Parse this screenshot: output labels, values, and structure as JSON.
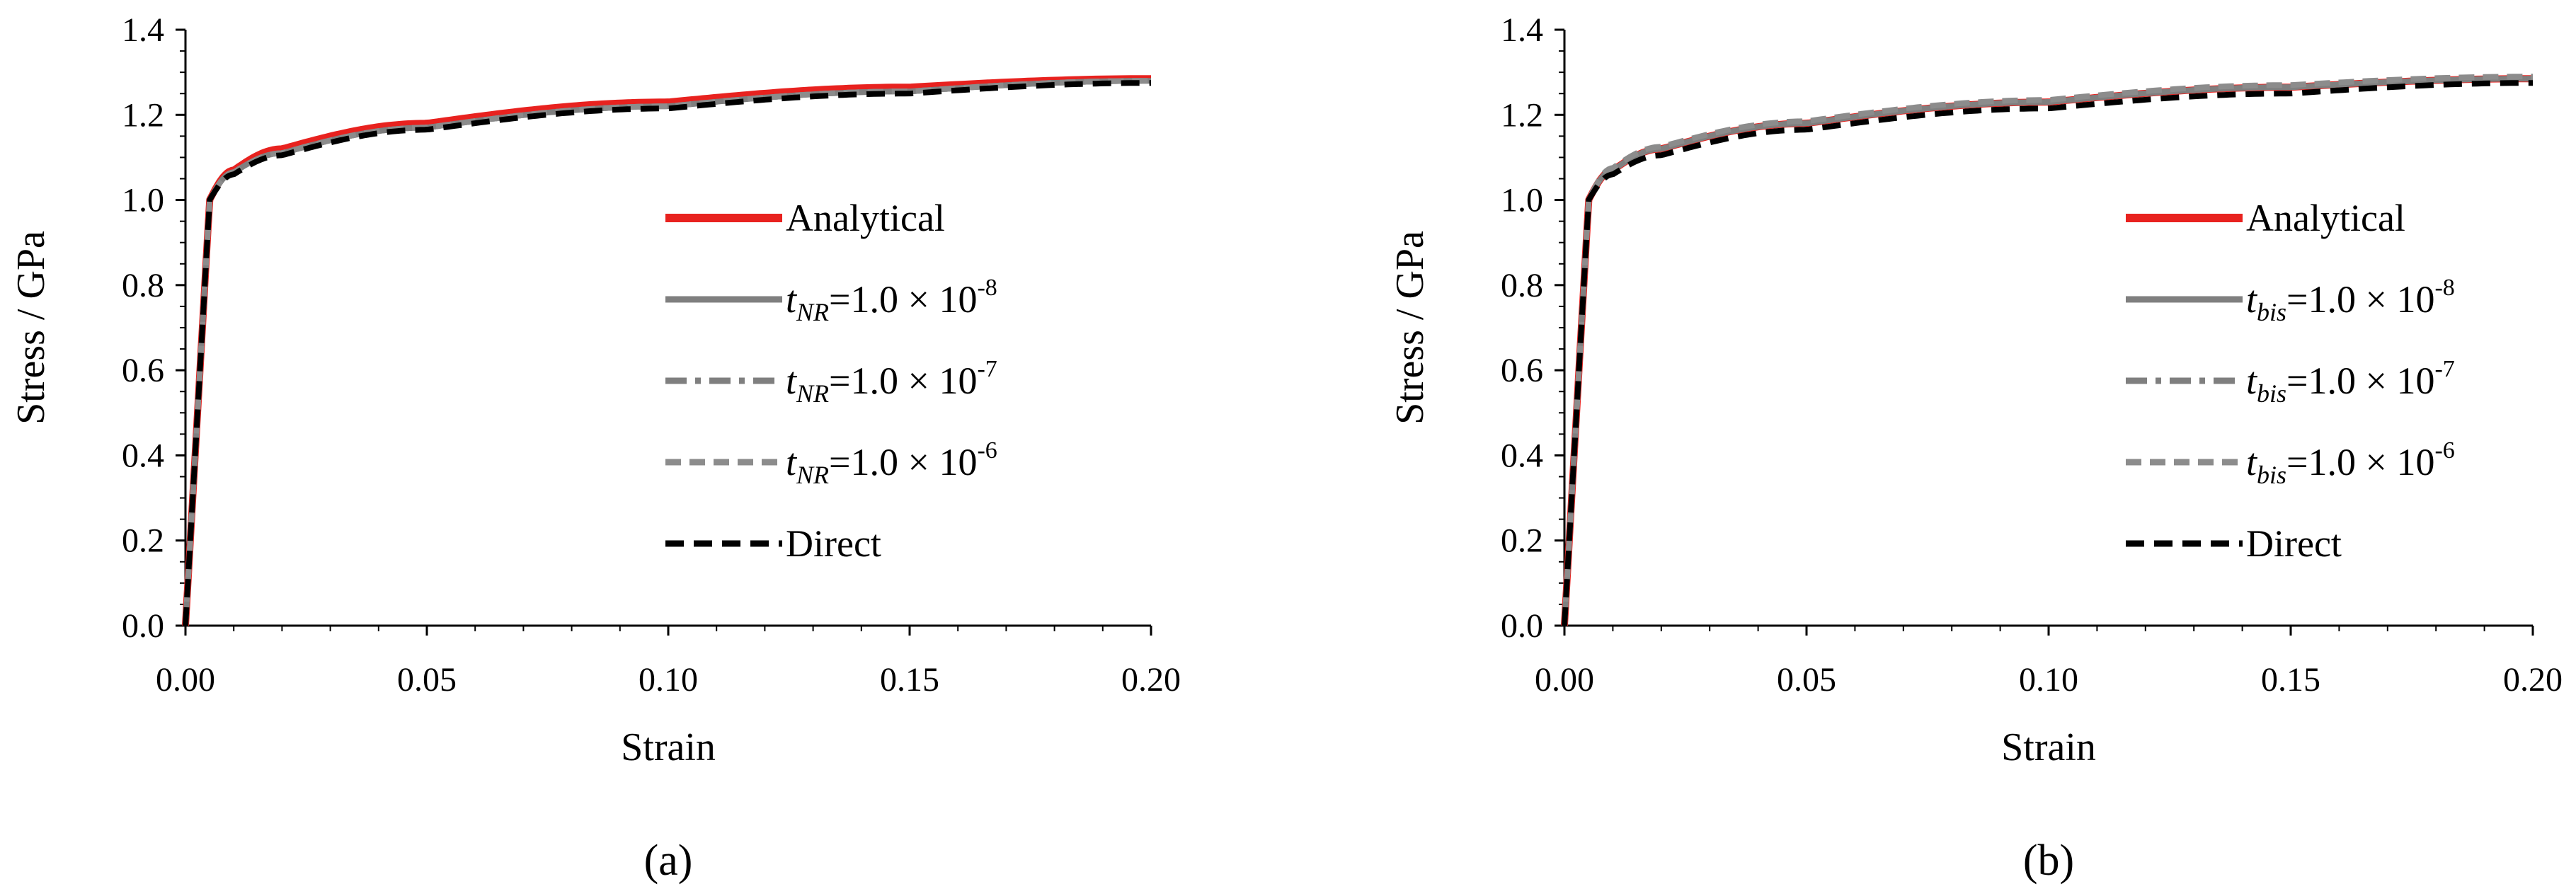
{
  "chart_data": [
    {
      "type": "line",
      "panel_label": "(a)",
      "xlabel": "Strain",
      "ylabel": "Stress / GPa",
      "xlim": [
        0,
        0.2
      ],
      "ylim": [
        0,
        1.4
      ],
      "x_ticks": [
        "0.00",
        "0.05",
        "0.10",
        "0.15",
        "0.20"
      ],
      "y_ticks": [
        "0.0",
        "0.2",
        "0.4",
        "0.6",
        "0.8",
        "1.0",
        "1.2",
        "1.4"
      ],
      "legend_position": "center-right",
      "series": [
        {
          "name": "Analytical",
          "color": "#e8221f",
          "dash": "solid",
          "x": [
            0,
            0.005,
            0.01,
            0.02,
            0.05,
            0.1,
            0.15,
            0.2
          ],
          "y": [
            0,
            1.0,
            1.07,
            1.12,
            1.18,
            1.23,
            1.265,
            1.285
          ]
        },
        {
          "name": "t_NR=1.0 × 10^-8",
          "color": "#7f7f7f",
          "dash": "solid",
          "x": [
            0,
            0.005,
            0.01,
            0.02,
            0.05,
            0.1,
            0.15,
            0.2
          ],
          "y": [
            0,
            1.0,
            1.065,
            1.11,
            1.17,
            1.22,
            1.255,
            1.28
          ]
        },
        {
          "name": "t_NR=1.0 × 10^-7",
          "color": "#7f7f7f",
          "dash": "dashdot",
          "x": [
            0,
            0.005,
            0.01,
            0.02,
            0.05,
            0.1,
            0.15,
            0.2
          ],
          "y": [
            0,
            1.0,
            1.065,
            1.11,
            1.17,
            1.22,
            1.255,
            1.28
          ]
        },
        {
          "name": "t_NR=1.0 × 10^-6",
          "color": "#8c8c8c",
          "dash": "dashed",
          "x": [
            0,
            0.005,
            0.01,
            0.02,
            0.05,
            0.1,
            0.15,
            0.2
          ],
          "y": [
            0,
            1.0,
            1.065,
            1.11,
            1.17,
            1.22,
            1.255,
            1.28
          ]
        },
        {
          "name": "Direct",
          "color": "#000000",
          "dash": "dashed",
          "x": [
            0,
            0.005,
            0.01,
            0.02,
            0.05,
            0.1,
            0.15,
            0.2
          ],
          "y": [
            0,
            1.0,
            1.06,
            1.105,
            1.165,
            1.215,
            1.25,
            1.275
          ]
        }
      ],
      "legend": [
        {
          "pre": "",
          "sub": "",
          "post": "Analytical",
          "sup": ""
        },
        {
          "pre": "t",
          "sub": "NR",
          "post": "=1.0 × 10",
          "sup": "-8"
        },
        {
          "pre": "t",
          "sub": "NR",
          "post": "=1.0 × 10",
          "sup": "-7"
        },
        {
          "pre": "t",
          "sub": "NR",
          "post": "=1.0 × 10",
          "sup": "-6"
        },
        {
          "pre": "",
          "sub": "",
          "post": "Direct",
          "sup": ""
        }
      ]
    },
    {
      "type": "line",
      "panel_label": "(b)",
      "xlabel": "Strain",
      "ylabel": "Stress / GPa",
      "xlim": [
        0,
        0.2
      ],
      "ylim": [
        0,
        1.4
      ],
      "x_ticks": [
        "0.00",
        "0.05",
        "0.10",
        "0.15",
        "0.20"
      ],
      "y_ticks": [
        "0.0",
        "0.2",
        "0.4",
        "0.6",
        "0.8",
        "1.0",
        "1.2",
        "1.4"
      ],
      "legend_position": "center-right",
      "series": [
        {
          "name": "Analytical",
          "color": "#e8221f",
          "dash": "solid",
          "x": [
            0,
            0.005,
            0.01,
            0.02,
            0.05,
            0.1,
            0.15,
            0.2
          ],
          "y": [
            0,
            1.0,
            1.07,
            1.12,
            1.18,
            1.23,
            1.265,
            1.285
          ]
        },
        {
          "name": "t_bis=1.0 × 10^-8",
          "color": "#7f7f7f",
          "dash": "solid",
          "x": [
            0,
            0.005,
            0.01,
            0.02,
            0.05,
            0.1,
            0.15,
            0.2
          ],
          "y": [
            0,
            1.0,
            1.07,
            1.12,
            1.18,
            1.23,
            1.265,
            1.285
          ]
        },
        {
          "name": "t_bis=1.0 × 10^-7",
          "color": "#7f7f7f",
          "dash": "dashdot",
          "x": [
            0,
            0.005,
            0.01,
            0.02,
            0.05,
            0.1,
            0.15,
            0.2
          ],
          "y": [
            0,
            1.0,
            1.07,
            1.12,
            1.18,
            1.23,
            1.265,
            1.285
          ]
        },
        {
          "name": "t_bis=1.0 × 10^-6",
          "color": "#8c8c8c",
          "dash": "dashed",
          "x": [
            0,
            0.005,
            0.01,
            0.02,
            0.05,
            0.1,
            0.15,
            0.2
          ],
          "y": [
            0,
            1.0,
            1.075,
            1.125,
            1.185,
            1.235,
            1.27,
            1.29
          ]
        },
        {
          "name": "Direct",
          "color": "#000000",
          "dash": "dashed",
          "x": [
            0,
            0.005,
            0.01,
            0.02,
            0.05,
            0.1,
            0.15,
            0.2
          ],
          "y": [
            0,
            1.0,
            1.06,
            1.105,
            1.165,
            1.215,
            1.25,
            1.275
          ]
        }
      ],
      "legend": [
        {
          "pre": "",
          "sub": "",
          "post": "Analytical",
          "sup": ""
        },
        {
          "pre": "t",
          "sub": "bis",
          "post": "=1.0 × 10",
          "sup": "-8"
        },
        {
          "pre": "t",
          "sub": "bis",
          "post": "=1.0 × 10",
          "sup": "-7"
        },
        {
          "pre": "t",
          "sub": "bis",
          "post": "=1.0 × 10",
          "sup": "-6"
        },
        {
          "pre": "",
          "sub": "",
          "post": "Direct",
          "sup": ""
        }
      ]
    }
  ]
}
